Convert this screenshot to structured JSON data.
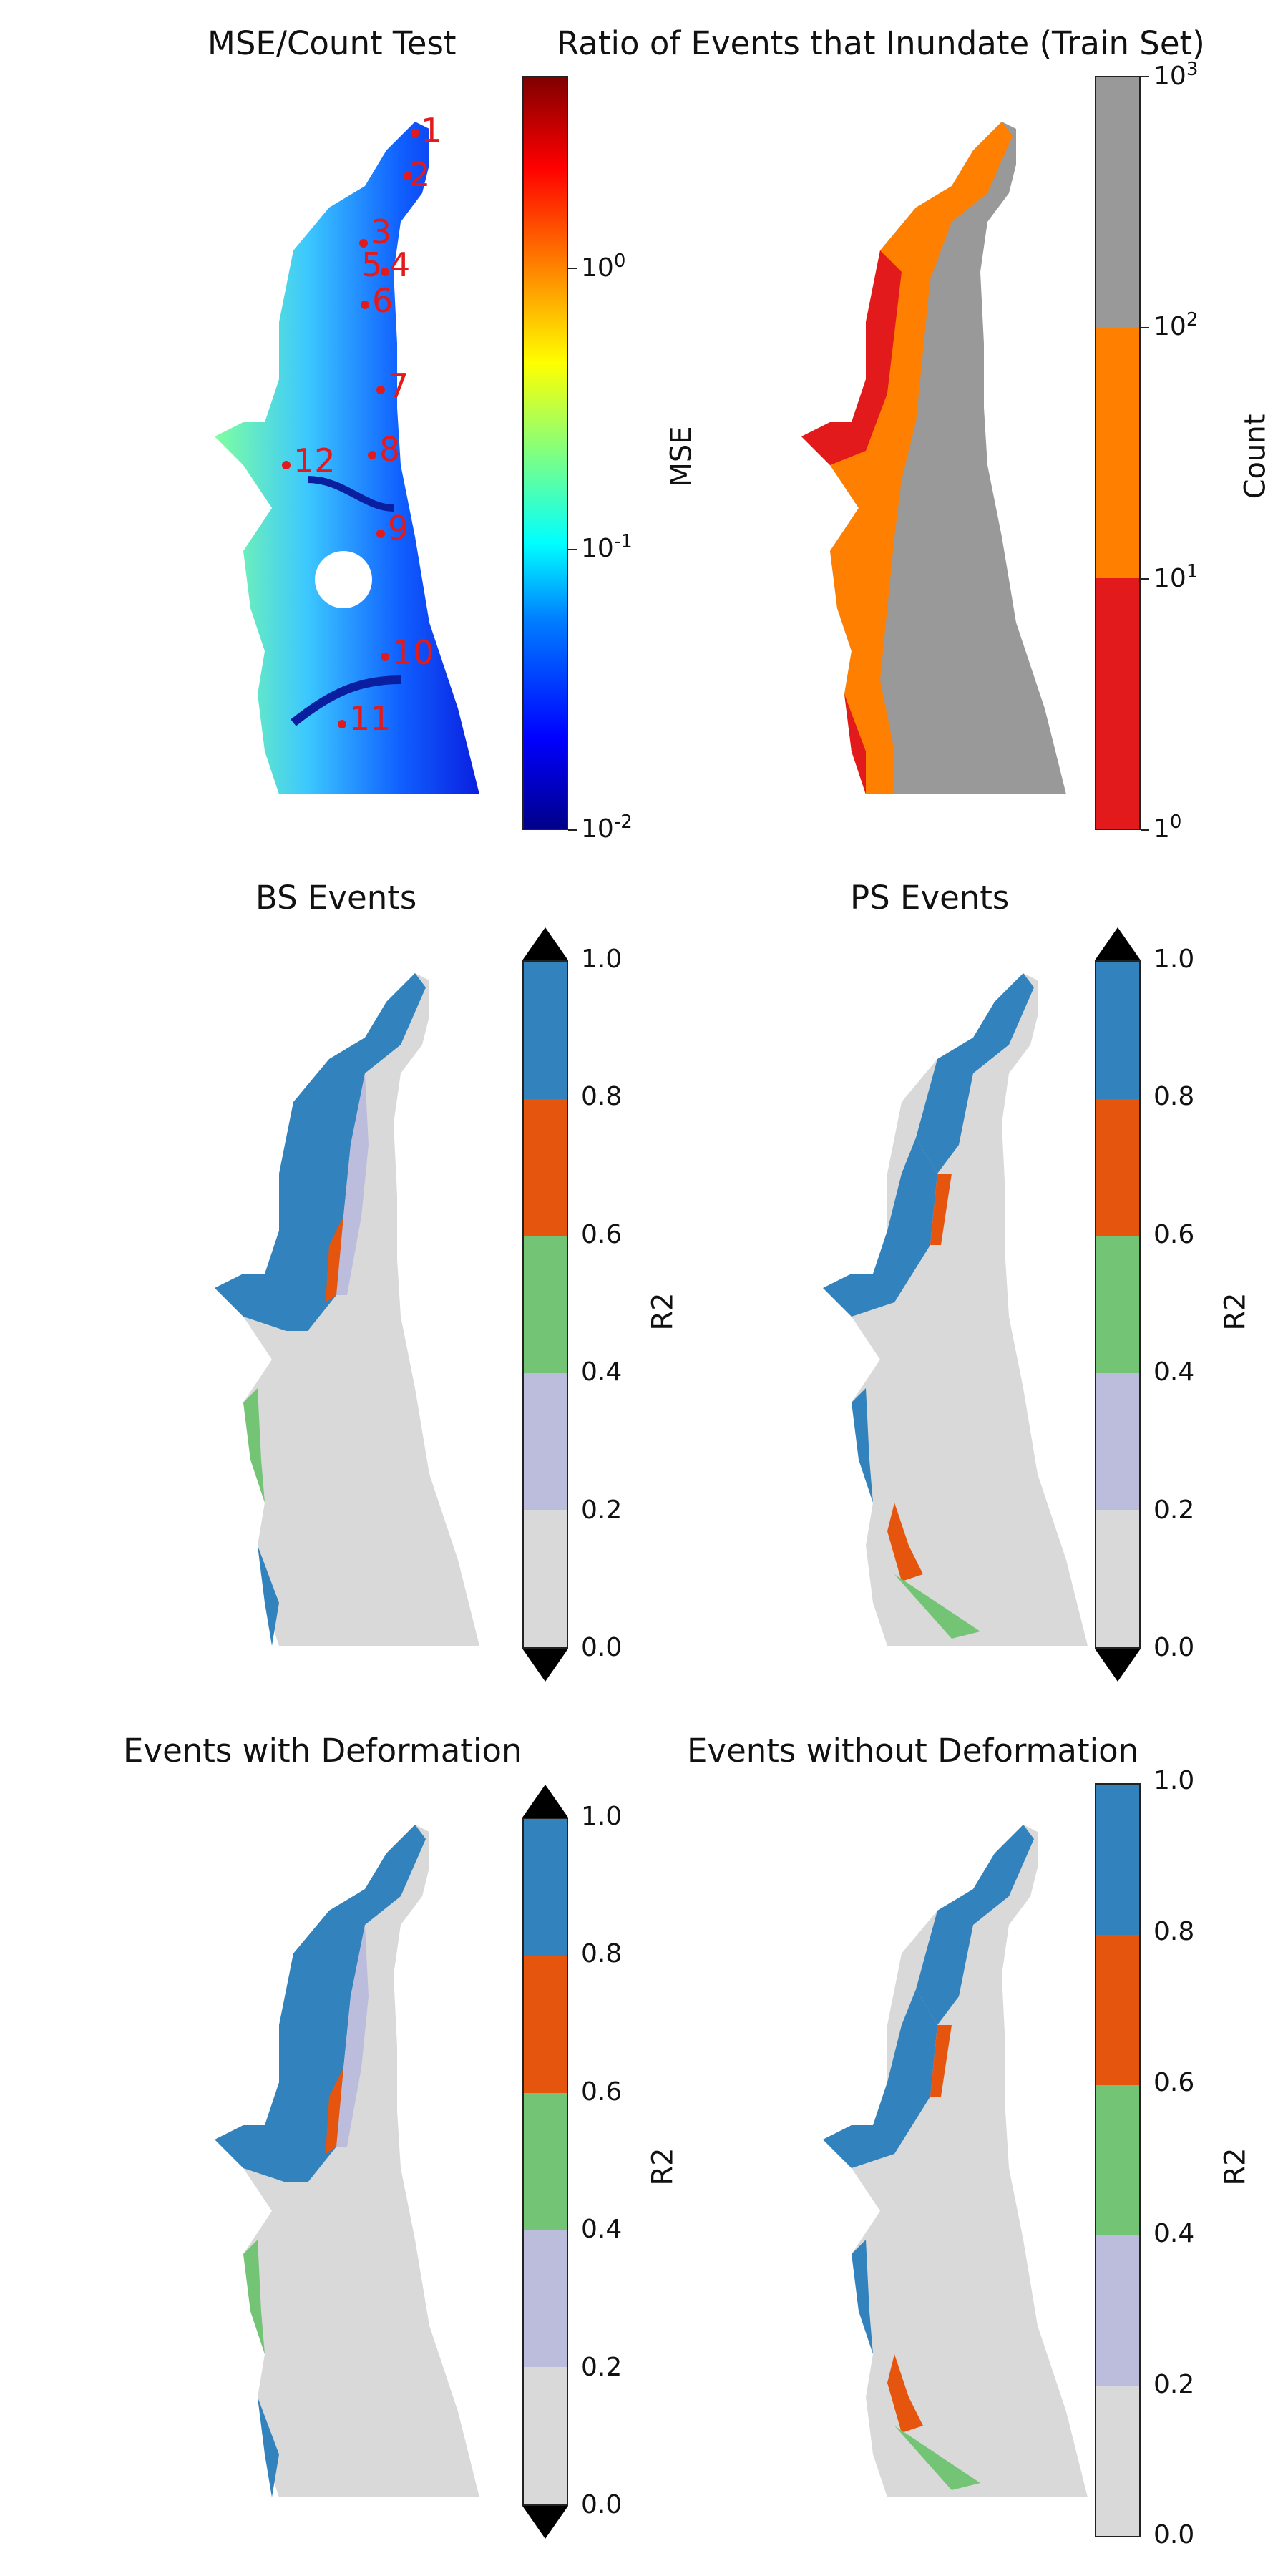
{
  "panels": [
    {
      "id": "p1",
      "title": "MSE/Count Test",
      "cbar_label": "MSE",
      "ticks": [
        "10",
        "10",
        "10"
      ],
      "tick_exps": [
        "-2",
        "-1",
        "0"
      ]
    },
    {
      "id": "p2",
      "title": "Ratio of Events that Inundate (Train Set)",
      "cbar_label": "Count",
      "ticks": [
        "1",
        "10",
        "10",
        "10"
      ],
      "tick_exps": [
        "0",
        "1",
        "2",
        "3"
      ]
    },
    {
      "id": "p3",
      "title": "BS Events",
      "cbar_label": "R2",
      "ticks": [
        "0.0",
        "0.2",
        "0.4",
        "0.6",
        "0.8",
        "1.0"
      ]
    },
    {
      "id": "p4",
      "title": "PS Events",
      "cbar_label": "R2",
      "ticks": [
        "0.0",
        "0.2",
        "0.4",
        "0.6",
        "0.8",
        "1.0"
      ]
    },
    {
      "id": "p5",
      "title": "Events with Deformation",
      "cbar_label": "R2",
      "ticks": [
        "0.0",
        "0.2",
        "0.4",
        "0.6",
        "0.8",
        "1.0"
      ]
    },
    {
      "id": "p6",
      "title": "Events without Deformation",
      "cbar_label": "R2",
      "ticks": [
        "0.0",
        "0.2",
        "0.4",
        "0.6",
        "0.8",
        "1.0"
      ]
    }
  ],
  "markers": [
    "1",
    "2",
    "3",
    "4",
    "5",
    "6",
    "7",
    "8",
    "9",
    "10",
    "11",
    "12"
  ],
  "colors": {
    "r2_bins": [
      "#d9d9d9",
      "#bcbddc",
      "#74c476",
      "#e6550d",
      "#3182bd"
    ],
    "count_bins": [
      "#e31a1c",
      "#ff7f00",
      "#999999"
    ],
    "extend": "#000000",
    "marker": "#e31a1c"
  }
}
